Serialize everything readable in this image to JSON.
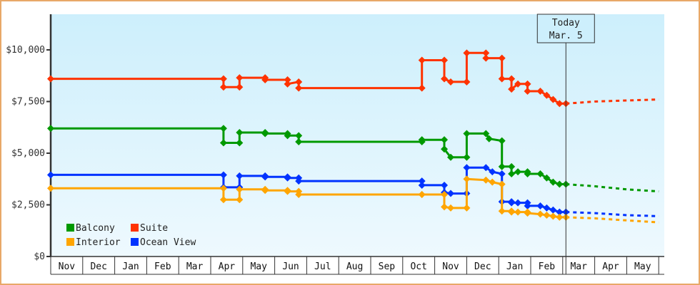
{
  "chart_data": {
    "type": "line",
    "title": "",
    "xlabel": "",
    "ylabel": "",
    "ylim": [
      0,
      12000
    ],
    "y_ticks": [
      {
        "value": 0,
        "label": "$0"
      },
      {
        "value": 2500,
        "label": "$2,500"
      },
      {
        "value": 5000,
        "label": "$5,000"
      },
      {
        "value": 7500,
        "label": "$7,500"
      },
      {
        "value": 10000,
        "label": "$10,000"
      }
    ],
    "x_ticks": [
      "Nov",
      "Dec",
      "Jan",
      "Feb",
      "Mar",
      "Apr",
      "May",
      "Jun",
      "Jul",
      "Aug",
      "Sep",
      "Oct",
      "Nov",
      "Dec",
      "Jan",
      "Feb",
      "Mar",
      "Apr",
      "May"
    ],
    "grid": false,
    "legend_position": "bottom-left inside",
    "annotation": {
      "line1": "Today",
      "line2": "Mar. 5",
      "x_month_index": 16.1
    },
    "series": [
      {
        "name": "Suite",
        "color": "#ff3300",
        "points": [
          [
            0,
            8600
          ],
          [
            5.4,
            8600
          ],
          [
            5.4,
            8200
          ],
          [
            5.9,
            8200
          ],
          [
            5.9,
            8650
          ],
          [
            6.7,
            8650
          ],
          [
            6.7,
            8550
          ],
          [
            7.4,
            8550
          ],
          [
            7.4,
            8350
          ],
          [
            7.75,
            8450
          ],
          [
            7.75,
            8150
          ],
          [
            11.6,
            8150
          ],
          [
            11.6,
            9500
          ],
          [
            12.3,
            9500
          ],
          [
            12.3,
            8600
          ],
          [
            12.5,
            8450
          ],
          [
            13.0,
            8450
          ],
          [
            13.0,
            9850
          ],
          [
            13.6,
            9850
          ],
          [
            13.6,
            9600
          ],
          [
            14.1,
            9600
          ],
          [
            14.1,
            8600
          ],
          [
            14.4,
            8600
          ],
          [
            14.4,
            8100
          ],
          [
            14.6,
            8350
          ],
          [
            14.9,
            8350
          ],
          [
            14.9,
            8000
          ],
          [
            15.3,
            8000
          ],
          [
            15.5,
            7800
          ],
          [
            15.7,
            7600
          ],
          [
            15.9,
            7400
          ],
          [
            16.1,
            7400
          ]
        ],
        "forecast": [
          [
            16.1,
            7400
          ],
          [
            17.0,
            7500
          ],
          [
            18.0,
            7550
          ],
          [
            19.0,
            7600
          ]
        ]
      },
      {
        "name": "Balcony",
        "color": "#009900",
        "points": [
          [
            0,
            6200
          ],
          [
            5.4,
            6200
          ],
          [
            5.4,
            5500
          ],
          [
            5.9,
            5500
          ],
          [
            5.9,
            6000
          ],
          [
            6.7,
            6000
          ],
          [
            6.7,
            5950
          ],
          [
            7.4,
            5950
          ],
          [
            7.4,
            5850
          ],
          [
            7.75,
            5850
          ],
          [
            7.75,
            5550
          ],
          [
            11.6,
            5550
          ],
          [
            11.6,
            5650
          ],
          [
            12.3,
            5650
          ],
          [
            12.3,
            5200
          ],
          [
            12.5,
            4800
          ],
          [
            13.0,
            4800
          ],
          [
            13.0,
            5950
          ],
          [
            13.6,
            5950
          ],
          [
            13.7,
            5700
          ],
          [
            14.1,
            5600
          ],
          [
            14.1,
            4350
          ],
          [
            14.4,
            4350
          ],
          [
            14.4,
            4000
          ],
          [
            14.6,
            4100
          ],
          [
            14.9,
            4100
          ],
          [
            14.9,
            4000
          ],
          [
            15.3,
            4000
          ],
          [
            15.5,
            3800
          ],
          [
            15.7,
            3600
          ],
          [
            15.9,
            3500
          ],
          [
            16.1,
            3500
          ]
        ],
        "forecast": [
          [
            16.1,
            3500
          ],
          [
            17.0,
            3400
          ],
          [
            18.0,
            3250
          ],
          [
            19.0,
            3150
          ]
        ]
      },
      {
        "name": "Ocean View",
        "color": "#0033ff",
        "points": [
          [
            0,
            3950
          ],
          [
            5.4,
            3950
          ],
          [
            5.4,
            3350
          ],
          [
            5.9,
            3350
          ],
          [
            5.9,
            3900
          ],
          [
            6.7,
            3900
          ],
          [
            6.7,
            3850
          ],
          [
            7.4,
            3850
          ],
          [
            7.4,
            3800
          ],
          [
            7.75,
            3800
          ],
          [
            7.75,
            3650
          ],
          [
            11.6,
            3650
          ],
          [
            11.6,
            3450
          ],
          [
            12.3,
            3450
          ],
          [
            12.3,
            3100
          ],
          [
            12.5,
            3050
          ],
          [
            13.0,
            3050
          ],
          [
            13.0,
            4300
          ],
          [
            13.6,
            4300
          ],
          [
            13.8,
            4100
          ],
          [
            14.1,
            4000
          ],
          [
            14.1,
            2650
          ],
          [
            14.4,
            2650
          ],
          [
            14.4,
            2600
          ],
          [
            14.6,
            2600
          ],
          [
            14.9,
            2600
          ],
          [
            14.9,
            2450
          ],
          [
            15.3,
            2450
          ],
          [
            15.5,
            2350
          ],
          [
            15.7,
            2250
          ],
          [
            15.9,
            2150
          ],
          [
            16.1,
            2150
          ]
        ],
        "forecast": [
          [
            16.1,
            2150
          ],
          [
            17.0,
            2100
          ],
          [
            18.0,
            2000
          ],
          [
            19.0,
            1950
          ]
        ]
      },
      {
        "name": "Interior",
        "color": "#ffa500",
        "points": [
          [
            0,
            3300
          ],
          [
            5.4,
            3300
          ],
          [
            5.4,
            2750
          ],
          [
            5.9,
            2750
          ],
          [
            5.9,
            3250
          ],
          [
            6.7,
            3250
          ],
          [
            6.7,
            3200
          ],
          [
            7.4,
            3200
          ],
          [
            7.4,
            3150
          ],
          [
            7.75,
            3150
          ],
          [
            7.75,
            3000
          ],
          [
            11.6,
            3000
          ],
          [
            11.6,
            3000
          ],
          [
            12.3,
            3000
          ],
          [
            12.3,
            2400
          ],
          [
            12.5,
            2350
          ],
          [
            13.0,
            2350
          ],
          [
            13.0,
            3750
          ],
          [
            13.6,
            3700
          ],
          [
            13.8,
            3600
          ],
          [
            14.1,
            3500
          ],
          [
            14.1,
            2200
          ],
          [
            14.4,
            2200
          ],
          [
            14.4,
            2150
          ],
          [
            14.6,
            2150
          ],
          [
            14.9,
            2150
          ],
          [
            14.9,
            2100
          ],
          [
            15.3,
            2050
          ],
          [
            15.5,
            2000
          ],
          [
            15.7,
            1950
          ],
          [
            15.9,
            1900
          ],
          [
            16.1,
            1900
          ]
        ],
        "forecast": [
          [
            16.1,
            1900
          ],
          [
            17.0,
            1850
          ],
          [
            18.0,
            1750
          ],
          [
            19.0,
            1650
          ]
        ]
      }
    ]
  },
  "legend": [
    {
      "label": "Balcony",
      "color": "#009900"
    },
    {
      "label": "Suite",
      "color": "#ff3300"
    },
    {
      "label": "Interior",
      "color": "#ffa500"
    },
    {
      "label": "Ocean View",
      "color": "#0033ff"
    }
  ],
  "today": {
    "line1": "Today",
    "line2": "Mar. 5"
  }
}
